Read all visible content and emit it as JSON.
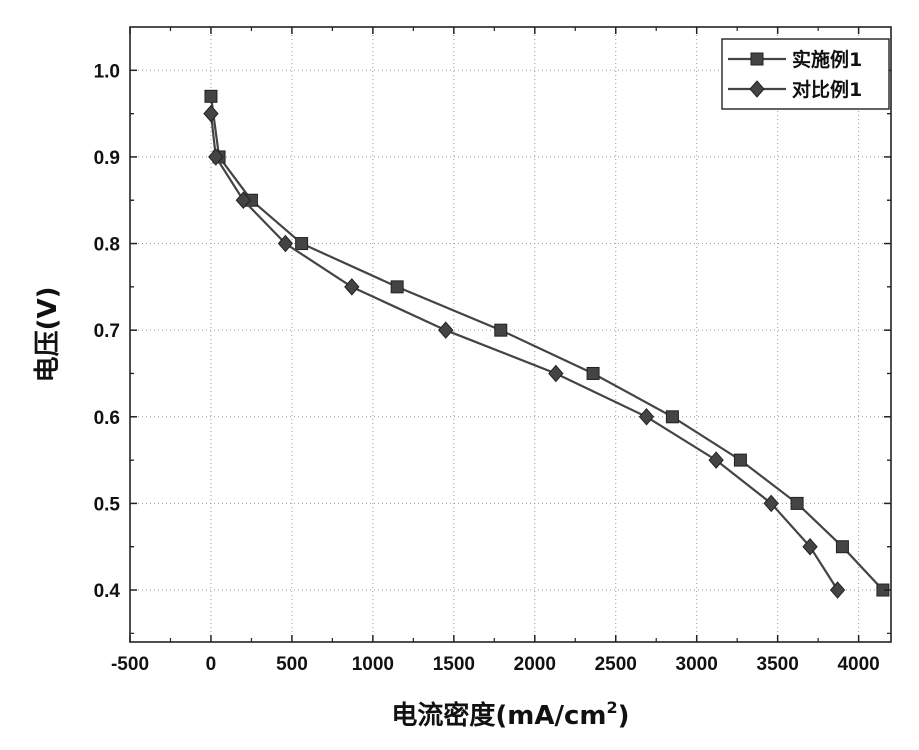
{
  "chart_data": {
    "type": "line",
    "title": "",
    "xlabel": "电流密度(mA/cm",
    "xlabel_sup": "2",
    "xlabel_end": ")",
    "ylabel": "电压(V)",
    "xlim": [
      -500,
      4200
    ],
    "ylim": [
      0.34,
      1.05
    ],
    "x_ticks": [
      -500,
      0,
      500,
      1000,
      1500,
      2000,
      2500,
      3000,
      3500,
      4000
    ],
    "y_ticks": [
      0.4,
      0.5,
      0.6,
      0.7,
      0.8,
      0.9,
      1.0
    ],
    "x_tick_labels": [
      "-500",
      "0",
      "500",
      "1000",
      "1500",
      "2000",
      "2500",
      "3000",
      "3500",
      "4000"
    ],
    "y_tick_labels": [
      "0.4",
      "0.5",
      "0.6",
      "0.7",
      "0.8",
      "0.9",
      "1.0"
    ],
    "grid": true,
    "legend_position": "top-right",
    "series": [
      {
        "name": "实施例1",
        "marker": "square",
        "color": "#444444",
        "x": [
          0,
          50,
          250,
          560,
          1150,
          1790,
          2360,
          2850,
          3270,
          3620,
          3900,
          4150
        ],
        "y": [
          0.97,
          0.9,
          0.85,
          0.8,
          0.75,
          0.7,
          0.65,
          0.6,
          0.55,
          0.5,
          0.45,
          0.4
        ]
      },
      {
        "name": "对比例1",
        "marker": "diamond",
        "color": "#444444",
        "x": [
          0,
          30,
          200,
          460,
          870,
          1450,
          2130,
          2690,
          3120,
          3460,
          3700,
          3870
        ],
        "y": [
          0.95,
          0.9,
          0.85,
          0.8,
          0.75,
          0.7,
          0.65,
          0.6,
          0.55,
          0.5,
          0.45,
          0.4
        ]
      }
    ]
  }
}
